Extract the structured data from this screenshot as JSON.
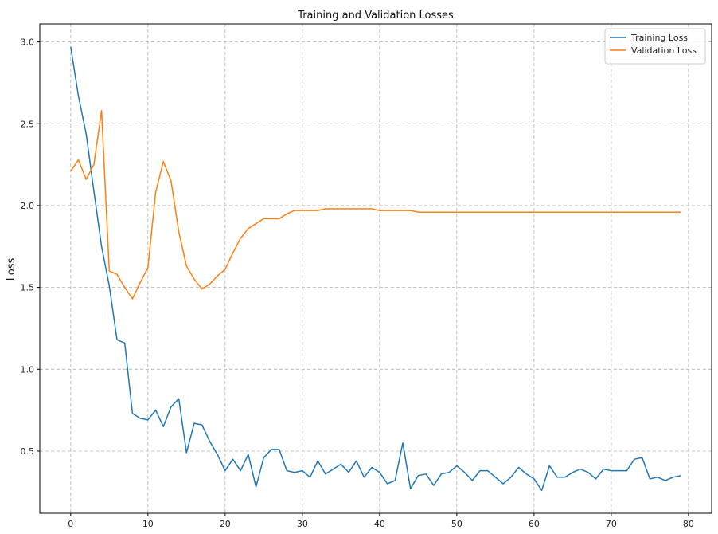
{
  "chart_data": {
    "type": "line",
    "title": "Training and Validation Losses",
    "xlabel": "",
    "ylabel": "Loss",
    "xlim": [
      -4,
      83
    ],
    "ylim": [
      0.12,
      3.11
    ],
    "xticks": [
      0,
      10,
      20,
      30,
      40,
      50,
      60,
      70,
      80
    ],
    "yticks": [
      0.5,
      1.0,
      1.5,
      2.0,
      2.5,
      3.0
    ],
    "xtick_labels": [
      "0",
      "10",
      "20",
      "30",
      "40",
      "50",
      "60",
      "70",
      "80"
    ],
    "ytick_labels": [
      "0.5",
      "1.0",
      "1.5",
      "2.0",
      "2.5",
      "3.0"
    ],
    "grid": true,
    "legend_position": "top-right",
    "x": [
      0,
      1,
      2,
      3,
      4,
      5,
      6,
      7,
      8,
      9,
      10,
      11,
      12,
      13,
      14,
      15,
      16,
      17,
      18,
      19,
      20,
      21,
      22,
      23,
      24,
      25,
      26,
      27,
      28,
      29,
      30,
      31,
      32,
      33,
      34,
      35,
      36,
      37,
      38,
      39,
      40,
      41,
      42,
      43,
      44,
      45,
      46,
      47,
      48,
      49,
      50,
      51,
      52,
      53,
      54,
      55,
      56,
      57,
      58,
      59,
      60,
      61,
      62,
      63,
      64,
      65,
      66,
      67,
      68,
      69,
      70,
      71,
      72,
      73,
      74,
      75,
      76,
      77,
      78,
      79
    ],
    "series": [
      {
        "name": "Training Loss",
        "color": "#1f77b4",
        "values": [
          2.97,
          2.67,
          2.44,
          2.09,
          1.75,
          1.51,
          1.18,
          1.16,
          0.73,
          0.7,
          0.69,
          0.75,
          0.65,
          0.77,
          0.82,
          0.49,
          0.67,
          0.66,
          0.56,
          0.48,
          0.38,
          0.45,
          0.38,
          0.48,
          0.28,
          0.46,
          0.51,
          0.51,
          0.38,
          0.37,
          0.38,
          0.34,
          0.44,
          0.36,
          0.39,
          0.42,
          0.37,
          0.44,
          0.34,
          0.4,
          0.37,
          0.3,
          0.32,
          0.55,
          0.27,
          0.35,
          0.36,
          0.29,
          0.36,
          0.37,
          0.41,
          0.37,
          0.32,
          0.38,
          0.38,
          0.34,
          0.3,
          0.34,
          0.4,
          0.36,
          0.33,
          0.26,
          0.41,
          0.34,
          0.34,
          0.37,
          0.39,
          0.37,
          0.33,
          0.39,
          0.38,
          0.38,
          0.38,
          0.45,
          0.46,
          0.33,
          0.34,
          0.32,
          0.34,
          0.35
        ]
      },
      {
        "name": "Validation Loss",
        "color": "#ff7f0e",
        "values": [
          2.21,
          2.28,
          2.16,
          2.25,
          2.58,
          1.6,
          1.58,
          1.5,
          1.43,
          1.53,
          1.62,
          2.08,
          2.27,
          2.15,
          1.84,
          1.63,
          1.55,
          1.49,
          1.52,
          1.57,
          1.61,
          1.71,
          1.8,
          1.86,
          1.89,
          1.92,
          1.92,
          1.92,
          1.95,
          1.97,
          1.97,
          1.97,
          1.97,
          1.98,
          1.98,
          1.98,
          1.98,
          1.98,
          1.98,
          1.98,
          1.97,
          1.97,
          1.97,
          1.97,
          1.97,
          1.96,
          1.96,
          1.96,
          1.96,
          1.96,
          1.96,
          1.96,
          1.96,
          1.96,
          1.96,
          1.96,
          1.96,
          1.96,
          1.96,
          1.96,
          1.96,
          1.96,
          1.96,
          1.96,
          1.96,
          1.96,
          1.96,
          1.96,
          1.96,
          1.96,
          1.96,
          1.96,
          1.96,
          1.96,
          1.96,
          1.96,
          1.96,
          1.96,
          1.96,
          1.96
        ]
      }
    ]
  }
}
